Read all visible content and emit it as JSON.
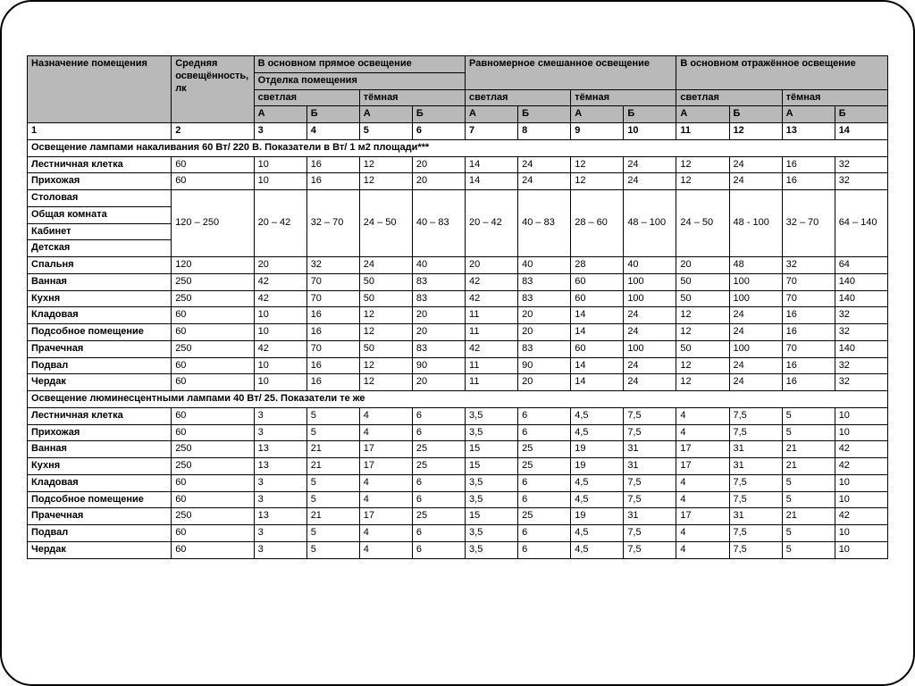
{
  "table": {
    "type": "table",
    "background_color": "#ffffff",
    "header_bg": "#b9b9b9",
    "border_color": "#000000",
    "font_size_pt": 8,
    "header": {
      "room": "Назначение помещения",
      "lux": "Средняя освещённость, лк",
      "group1": "В основном прямое освещение",
      "group2": "Равномерное смешанное освещение",
      "group3": "В основном отражённое освещение",
      "finish": "Отделка помещения",
      "light": "светлая",
      "dark": "тёмная",
      "A": "А",
      "B": "Б"
    },
    "col_nums": [
      "1",
      "2",
      "3",
      "4",
      "5",
      "6",
      "7",
      "8",
      "9",
      "10",
      "11",
      "12",
      "13",
      "14"
    ],
    "section1": "Освещение лампами накаливания 60 Вт/ 220 В. Показатели в Вт/ 1 м2 площади***",
    "section2": "Освещение люминесцентными лампами 40 Вт/ 25. Показатели те же",
    "rows1": [
      {
        "room": "Лестничная клетка",
        "lux": "60",
        "v": [
          "10",
          "16",
          "12",
          "20",
          "14",
          "24",
          "12",
          "24",
          "12",
          "24",
          "16",
          "32"
        ]
      },
      {
        "room": "Прихожая",
        "lux": "60",
        "v": [
          "10",
          "16",
          "12",
          "20",
          "14",
          "24",
          "12",
          "24",
          "12",
          "24",
          "16",
          "32"
        ]
      },
      {
        "room": "Столовая",
        "lux": "120 – 250",
        "v": [
          "20 – 42",
          "32 – 70",
          "24 – 50",
          "40 – 83",
          "20 – 42",
          "40 – 83",
          "28 – 60",
          "48 – 100",
          "24 – 50",
          "48 - 100",
          "32 – 70",
          "64 – 140"
        ],
        "tall": true
      },
      {
        "room": "Общая комната",
        "merge_up": true
      },
      {
        "room": "Кабинет",
        "merge_up": true
      },
      {
        "room": "Детская",
        "merge_up": true
      },
      {
        "room": "Спальня",
        "lux": "120",
        "v": [
          "20",
          "32",
          "24",
          "40",
          "20",
          "40",
          "28",
          "40",
          "20",
          "48",
          "32",
          "64"
        ]
      },
      {
        "room": "Ванная",
        "lux": "250",
        "v": [
          "42",
          "70",
          "50",
          "83",
          "42",
          "83",
          "60",
          "100",
          "50",
          "100",
          "70",
          "140"
        ]
      },
      {
        "room": "Кухня",
        "lux": "250",
        "v": [
          "42",
          "70",
          "50",
          "83",
          "42",
          "83",
          "60",
          "100",
          "50",
          "100",
          "70",
          "140"
        ]
      },
      {
        "room": "Кладовая",
        "lux": "60",
        "v": [
          "10",
          "16",
          "12",
          "20",
          "11",
          "20",
          "14",
          "24",
          "12",
          "24",
          "16",
          "32"
        ]
      },
      {
        "room": "Подсобное помещение",
        "lux": "60",
        "v": [
          "10",
          "16",
          "12",
          "20",
          "11",
          "20",
          "14",
          "24",
          "12",
          "24",
          "16",
          "32"
        ]
      },
      {
        "room": "Прачечная",
        "lux": "250",
        "v": [
          "42",
          "70",
          "50",
          "83",
          "42",
          "83",
          "60",
          "100",
          "50",
          "100",
          "70",
          "140"
        ]
      },
      {
        "room": "Подвал",
        "lux": "60",
        "v": [
          "10",
          "16",
          "12",
          "90",
          "11",
          "90",
          "14",
          "24",
          "12",
          "24",
          "16",
          "32"
        ]
      },
      {
        "room": "Чердак",
        "lux": "60",
        "v": [
          "10",
          "16",
          "12",
          "20",
          "11",
          "20",
          "14",
          "24",
          "12",
          "24",
          "16",
          "32"
        ]
      }
    ],
    "rows2": [
      {
        "room": "Лестничная клетка",
        "lux": "60",
        "v": [
          "3",
          "5",
          "4",
          "6",
          "3,5",
          "6",
          "4,5",
          "7,5",
          "4",
          "7,5",
          "5",
          "10"
        ]
      },
      {
        "room": "Прихожая",
        "lux": "60",
        "v": [
          "3",
          "5",
          "4",
          "6",
          "3,5",
          "6",
          "4,5",
          "7,5",
          "4",
          "7,5",
          "5",
          "10"
        ]
      },
      {
        "room": "Ванная",
        "lux": "250",
        "v": [
          "13",
          "21",
          "17",
          "25",
          "15",
          "25",
          "19",
          "31",
          "17",
          "31",
          "21",
          "42"
        ]
      },
      {
        "room": "Кухня",
        "lux": "250",
        "v": [
          "13",
          "21",
          "17",
          "25",
          "15",
          "25",
          "19",
          "31",
          "17",
          "31",
          "21",
          "42"
        ]
      },
      {
        "room": "Кладовая",
        "lux": "60",
        "v": [
          "3",
          "5",
          "4",
          "6",
          "3,5",
          "6",
          "4,5",
          "7,5",
          "4",
          "7,5",
          "5",
          "10"
        ]
      },
      {
        "room": "Подсобное помещение",
        "lux": "60",
        "v": [
          "3",
          "5",
          "4",
          "6",
          "3,5",
          "6",
          "4,5",
          "7,5",
          "4",
          "7,5",
          "5",
          "10"
        ]
      },
      {
        "room": "Прачечная",
        "lux": "250",
        "v": [
          "13",
          "21",
          "17",
          "25",
          "15",
          "25",
          "19",
          "31",
          "17",
          "31",
          "21",
          "42"
        ]
      },
      {
        "room": "Подвал",
        "lux": "60",
        "v": [
          "3",
          "5",
          "4",
          "6",
          "3,5",
          "6",
          "4,5",
          "7,5",
          "4",
          "7,5",
          "5",
          "10"
        ]
      },
      {
        "room": "Чердак",
        "lux": "60",
        "v": [
          "3",
          "5",
          "4",
          "6",
          "3,5",
          "6",
          "4,5",
          "7,5",
          "4",
          "7,5",
          "5",
          "10"
        ]
      }
    ]
  }
}
